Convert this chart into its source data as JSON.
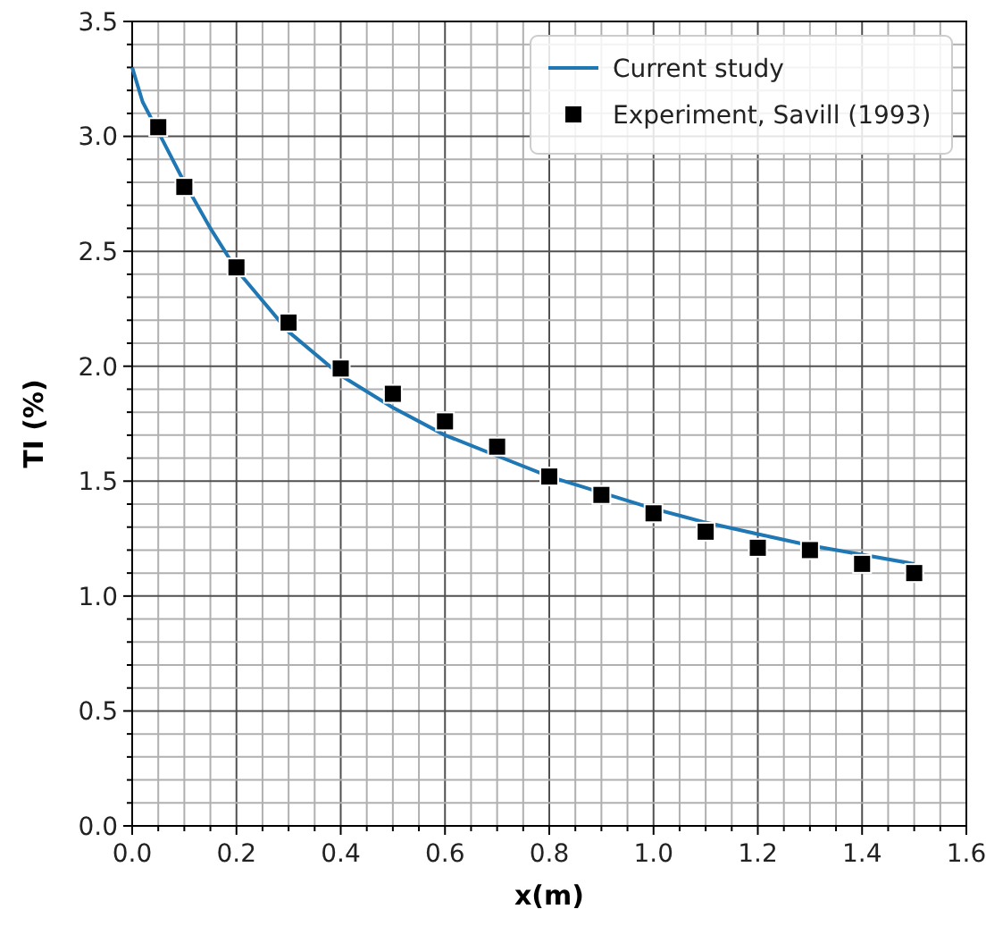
{
  "chart_data": {
    "type": "line",
    "xlabel": "x(m)",
    "ylabel": "TI (%)",
    "xlim": [
      0,
      1.6
    ],
    "ylim": [
      0,
      3.5
    ],
    "xticks": [
      {
        "value": 0,
        "label": "0.0"
      },
      {
        "value": 0.05,
        "label": null
      },
      {
        "value": 0.1,
        "label": null
      },
      {
        "value": 0.15,
        "label": null
      },
      {
        "value": 0.2,
        "label": "0.2"
      },
      {
        "value": 0.25,
        "label": null
      },
      {
        "value": 0.3,
        "label": null
      },
      {
        "value": 0.35,
        "label": null
      },
      {
        "value": 0.4,
        "label": "0.4"
      },
      {
        "value": 0.45,
        "label": null
      },
      {
        "value": 0.5,
        "label": null
      },
      {
        "value": 0.55,
        "label": null
      },
      {
        "value": 0.6,
        "label": "0.6"
      },
      {
        "value": 0.65,
        "label": null
      },
      {
        "value": 0.7,
        "label": null
      },
      {
        "value": 0.75,
        "label": null
      },
      {
        "value": 0.8,
        "label": "0.8"
      },
      {
        "value": 0.85,
        "label": null
      },
      {
        "value": 0.9,
        "label": null
      },
      {
        "value": 0.95,
        "label": null
      },
      {
        "value": 1,
        "label": "1.0"
      },
      {
        "value": 1.05,
        "label": null
      },
      {
        "value": 1.1,
        "label": null
      },
      {
        "value": 1.15,
        "label": null
      },
      {
        "value": 1.2,
        "label": "1.2"
      },
      {
        "value": 1.25,
        "label": null
      },
      {
        "value": 1.3,
        "label": null
      },
      {
        "value": 1.35,
        "label": null
      },
      {
        "value": 1.4,
        "label": "1.4"
      },
      {
        "value": 1.45,
        "label": null
      },
      {
        "value": 1.5,
        "label": null
      },
      {
        "value": 1.55,
        "label": null
      },
      {
        "value": 1.6,
        "label": "1.6"
      }
    ],
    "yticks": [
      {
        "value": 0,
        "label": "0.0"
      },
      {
        "value": 0.1,
        "label": null
      },
      {
        "value": 0.2,
        "label": null
      },
      {
        "value": 0.3,
        "label": null
      },
      {
        "value": 0.4,
        "label": null
      },
      {
        "value": 0.5,
        "label": "0.5"
      },
      {
        "value": 0.6,
        "label": null
      },
      {
        "value": 0.7,
        "label": null
      },
      {
        "value": 0.8,
        "label": null
      },
      {
        "value": 0.9,
        "label": null
      },
      {
        "value": 1,
        "label": "1.0"
      },
      {
        "value": 1.1,
        "label": null
      },
      {
        "value": 1.2,
        "label": null
      },
      {
        "value": 1.3,
        "label": null
      },
      {
        "value": 1.4,
        "label": null
      },
      {
        "value": 1.5,
        "label": "1.5"
      },
      {
        "value": 1.6,
        "label": null
      },
      {
        "value": 1.7,
        "label": null
      },
      {
        "value": 1.8,
        "label": null
      },
      {
        "value": 1.9,
        "label": null
      },
      {
        "value": 2,
        "label": "2.0"
      },
      {
        "value": 2.1,
        "label": null
      },
      {
        "value": 2.2,
        "label": null
      },
      {
        "value": 2.3,
        "label": null
      },
      {
        "value": 2.4,
        "label": null
      },
      {
        "value": 2.5,
        "label": "2.5"
      },
      {
        "value": 2.6,
        "label": null
      },
      {
        "value": 2.7,
        "label": null
      },
      {
        "value": 2.8,
        "label": null
      },
      {
        "value": 2.9,
        "label": null
      },
      {
        "value": 3,
        "label": "3.0"
      },
      {
        "value": 3.1,
        "label": null
      },
      {
        "value": 3.2,
        "label": null
      },
      {
        "value": 3.3,
        "label": null
      },
      {
        "value": 3.4,
        "label": null
      },
      {
        "value": 3.5,
        "label": "3.5"
      }
    ],
    "grid": true,
    "legend": "top right",
    "series": [
      {
        "name": "Current study",
        "color": "#1f77b4",
        "marker": "none",
        "line_style": "solid",
        "x": [
          0,
          0.02,
          0.05,
          0.1,
          0.15,
          0.2,
          0.3,
          0.4,
          0.5,
          0.6,
          0.7,
          0.8,
          0.9,
          1.0,
          1.1,
          1.2,
          1.3,
          1.4,
          1.5
        ],
        "values": [
          3.3,
          3.15,
          3.02,
          2.8,
          2.6,
          2.42,
          2.15,
          1.96,
          1.82,
          1.7,
          1.61,
          1.52,
          1.45,
          1.38,
          1.32,
          1.27,
          1.22,
          1.18,
          1.14
        ]
      },
      {
        "name": "Experiment, Savill (1993)",
        "type": "scatter",
        "color": "#000000",
        "marker": "square",
        "x": [
          0.05,
          0.1,
          0.2,
          0.3,
          0.4,
          0.5,
          0.6,
          0.7,
          0.8,
          0.9,
          1.0,
          1.1,
          1.2,
          1.3,
          1.4,
          1.5
        ],
        "values": [
          3.04,
          2.78,
          2.43,
          2.19,
          1.99,
          1.88,
          1.76,
          1.65,
          1.52,
          1.44,
          1.36,
          1.28,
          1.21,
          1.2,
          1.14,
          1.1
        ]
      }
    ]
  }
}
